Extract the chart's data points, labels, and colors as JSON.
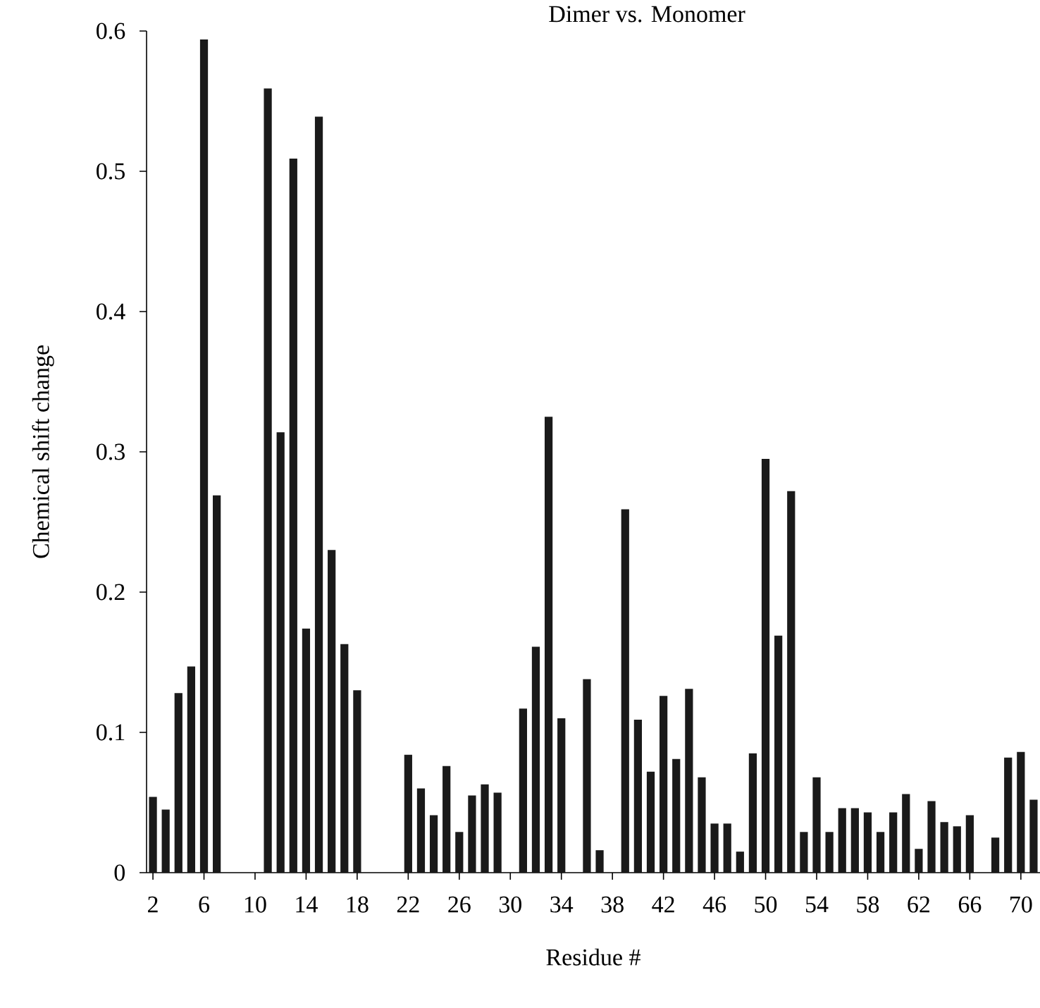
{
  "chart_data": {
    "type": "bar",
    "title": "Dimer vs. Monomer",
    "xlabel": "Residue #",
    "ylabel": "Chemical shift change",
    "x": [
      2,
      3,
      4,
      5,
      6,
      7,
      11,
      12,
      13,
      14,
      15,
      16,
      17,
      18,
      22,
      23,
      24,
      25,
      26,
      27,
      28,
      29,
      31,
      32,
      33,
      34,
      36,
      37,
      39,
      40,
      41,
      42,
      43,
      44,
      45,
      46,
      47,
      48,
      49,
      50,
      51,
      52,
      53,
      54,
      55,
      56,
      57,
      58,
      59,
      60,
      61,
      62,
      63,
      64,
      65,
      66,
      68,
      69,
      70,
      71
    ],
    "values": [
      0.054,
      0.045,
      0.128,
      0.147,
      0.594,
      0.269,
      0.559,
      0.314,
      0.509,
      0.174,
      0.539,
      0.23,
      0.163,
      0.13,
      0.084,
      0.06,
      0.041,
      0.076,
      0.029,
      0.055,
      0.063,
      0.057,
      0.117,
      0.161,
      0.325,
      0.11,
      0.138,
      0.016,
      0.259,
      0.109,
      0.072,
      0.126,
      0.081,
      0.131,
      0.068,
      0.035,
      0.035,
      0.015,
      0.085,
      0.295,
      0.169,
      0.272,
      0.029,
      0.068,
      0.029,
      0.046,
      0.046,
      0.043,
      0.029,
      0.043,
      0.056,
      0.017,
      0.051,
      0.036,
      0.033,
      0.041,
      0.025,
      0.082,
      0.086,
      0.052
    ],
    "color": "#1a1a1a",
    "xlim": [
      1.5,
      71.5
    ],
    "ylim": [
      0,
      0.6
    ],
    "xticks": [
      2,
      6,
      10,
      14,
      18,
      22,
      26,
      30,
      34,
      38,
      42,
      46,
      50,
      54,
      58,
      62,
      66,
      70
    ],
    "yticks": [
      0,
      0.1,
      0.2,
      0.3,
      0.4,
      0.5,
      0.6
    ],
    "grid": false
  }
}
